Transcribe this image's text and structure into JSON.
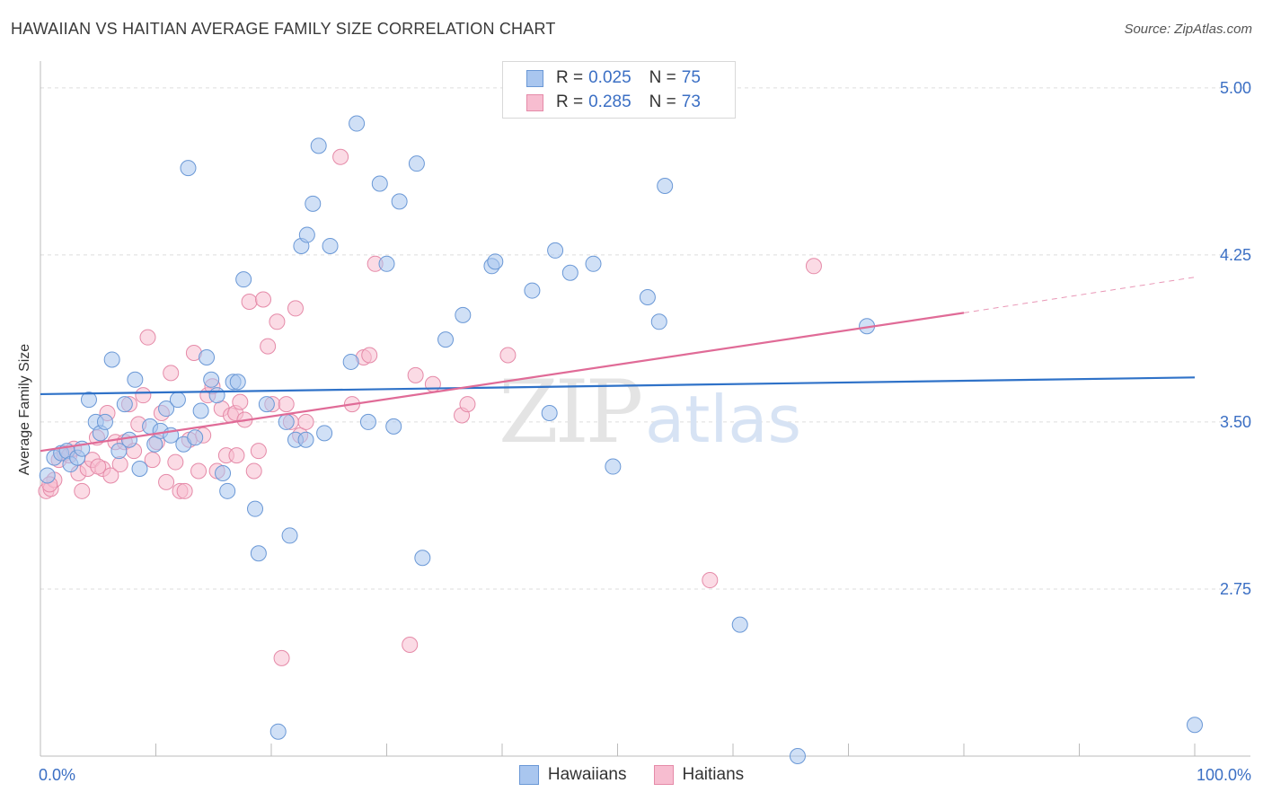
{
  "title": "HAWAIIAN VS HAITIAN AVERAGE FAMILY SIZE CORRELATION CHART",
  "source": "Source: ZipAtlas.com",
  "colors": {
    "hawaiians_fill": "#a9c6ef",
    "hawaiians_stroke": "#6a98d6",
    "hawaiians_line": "#2f72c8",
    "haitians_fill": "#f7bdd0",
    "haitians_stroke": "#e58aa8",
    "haitians_line": "#e06b97",
    "tick_label": "#3b6fc4",
    "grid": "#dddddd"
  },
  "legend": {
    "rows": [
      {
        "r_label": "R =",
        "r_value": "0.025",
        "n_label": "N =",
        "n_value": "75"
      },
      {
        "r_label": "R =",
        "r_value": "0.285",
        "n_label": "N =",
        "n_value": "73"
      }
    ]
  },
  "bottom_legend": [
    "Hawaiians",
    "Haitians"
  ],
  "chart_data": {
    "type": "scatter",
    "title": "HAWAIIAN VS HAITIAN AVERAGE FAMILY SIZE CORRELATION CHART",
    "ylabel": "Average Family Size",
    "xlabel": "",
    "xlim": [
      0,
      100
    ],
    "ylim": [
      2.0,
      5.08
    ],
    "x_tick_labels": [
      "0.0%",
      "100.0%"
    ],
    "y_ticks": [
      2.75,
      3.5,
      4.25,
      5.0
    ],
    "y_tick_labels": [
      "2.75",
      "3.50",
      "4.25",
      "5.00"
    ],
    "grid": "horizontal dashed",
    "watermark": "ZIPatlas",
    "series": [
      {
        "name": "Hawaiians",
        "r": 0.025,
        "n": 75,
        "trend": {
          "x0": 0,
          "y0": 3.625,
          "x1": 100,
          "y1": 3.7
        },
        "points": [
          [
            0.6,
            3.26
          ],
          [
            1.2,
            3.34
          ],
          [
            1.8,
            3.36
          ],
          [
            2.3,
            3.37
          ],
          [
            2.6,
            3.31
          ],
          [
            3.2,
            3.34
          ],
          [
            3.6,
            3.38
          ],
          [
            4.2,
            3.6
          ],
          [
            4.8,
            3.5
          ],
          [
            5.2,
            3.45
          ],
          [
            5.6,
            3.5
          ],
          [
            6.2,
            3.78
          ],
          [
            6.8,
            3.37
          ],
          [
            7.3,
            3.58
          ],
          [
            7.7,
            3.42
          ],
          [
            8.2,
            3.69
          ],
          [
            8.6,
            3.29
          ],
          [
            9.5,
            3.48
          ],
          [
            9.9,
            3.4
          ],
          [
            10.4,
            3.46
          ],
          [
            10.9,
            3.56
          ],
          [
            11.3,
            3.44
          ],
          [
            11.9,
            3.6
          ],
          [
            12.4,
            3.4
          ],
          [
            12.8,
            4.64
          ],
          [
            13.4,
            3.43
          ],
          [
            13.9,
            3.55
          ],
          [
            14.4,
            3.79
          ],
          [
            14.8,
            3.69
          ],
          [
            15.3,
            3.62
          ],
          [
            15.8,
            3.27
          ],
          [
            16.2,
            3.19
          ],
          [
            16.7,
            3.68
          ],
          [
            17.1,
            3.68
          ],
          [
            17.6,
            4.14
          ],
          [
            18.6,
            3.11
          ],
          [
            18.9,
            2.91
          ],
          [
            19.6,
            3.58
          ],
          [
            20.6,
            2.11
          ],
          [
            21.3,
            3.5
          ],
          [
            21.6,
            2.99
          ],
          [
            22.1,
            3.42
          ],
          [
            22.6,
            4.29
          ],
          [
            23.1,
            4.34
          ],
          [
            23.6,
            4.48
          ],
          [
            24.1,
            4.74
          ],
          [
            24.6,
            3.45
          ],
          [
            25.1,
            4.29
          ],
          [
            26.9,
            3.77
          ],
          [
            27.4,
            4.84
          ],
          [
            28.4,
            3.5
          ],
          [
            29.4,
            4.57
          ],
          [
            30.6,
            3.48
          ],
          [
            31.1,
            4.49
          ],
          [
            32.6,
            4.66
          ],
          [
            33.1,
            2.89
          ],
          [
            35.1,
            3.87
          ],
          [
            36.6,
            3.98
          ],
          [
            39.1,
            4.2
          ],
          [
            39.4,
            4.22
          ],
          [
            42.6,
            4.09
          ],
          [
            44.1,
            3.54
          ],
          [
            44.6,
            4.27
          ],
          [
            45.9,
            4.17
          ],
          [
            47.9,
            4.21
          ],
          [
            49.6,
            3.3
          ],
          [
            52.6,
            4.06
          ],
          [
            53.6,
            3.95
          ],
          [
            54.1,
            4.56
          ],
          [
            60.6,
            2.59
          ],
          [
            65.6,
            2.0
          ],
          [
            71.6,
            3.93
          ],
          [
            30.0,
            4.21
          ],
          [
            100.0,
            2.14
          ],
          [
            23.0,
            3.42
          ]
        ]
      },
      {
        "name": "Haitians",
        "r": 0.285,
        "n": 73,
        "trend": {
          "x0": 0,
          "y0": 3.37,
          "x1": 80,
          "y1": 3.99
        },
        "trend_dashed": {
          "x0": 80,
          "y0": 3.99,
          "x1": 100,
          "y1": 4.15
        },
        "points": [
          [
            0.5,
            3.19
          ],
          [
            0.9,
            3.2
          ],
          [
            1.2,
            3.24
          ],
          [
            1.6,
            3.33
          ],
          [
            2.1,
            3.36
          ],
          [
            2.5,
            3.35
          ],
          [
            2.9,
            3.38
          ],
          [
            3.3,
            3.27
          ],
          [
            3.6,
            3.19
          ],
          [
            4.1,
            3.29
          ],
          [
            4.5,
            3.33
          ],
          [
            4.9,
            3.43
          ],
          [
            5.4,
            3.29
          ],
          [
            5.8,
            3.54
          ],
          [
            6.1,
            3.26
          ],
          [
            6.5,
            3.41
          ],
          [
            6.9,
            3.31
          ],
          [
            7.3,
            3.41
          ],
          [
            7.7,
            3.58
          ],
          [
            8.1,
            3.37
          ],
          [
            8.5,
            3.49
          ],
          [
            8.9,
            3.62
          ],
          [
            9.3,
            3.88
          ],
          [
            9.7,
            3.33
          ],
          [
            10.1,
            3.41
          ],
          [
            10.5,
            3.54
          ],
          [
            10.9,
            3.23
          ],
          [
            11.3,
            3.72
          ],
          [
            11.7,
            3.32
          ],
          [
            12.1,
            3.19
          ],
          [
            12.5,
            3.19
          ],
          [
            12.9,
            3.42
          ],
          [
            13.3,
            3.81
          ],
          [
            13.7,
            3.28
          ],
          [
            14.1,
            3.44
          ],
          [
            14.5,
            3.62
          ],
          [
            14.9,
            3.66
          ],
          [
            15.3,
            3.28
          ],
          [
            15.7,
            3.56
          ],
          [
            16.1,
            3.35
          ],
          [
            16.5,
            3.53
          ],
          [
            16.9,
            3.54
          ],
          [
            17.3,
            3.59
          ],
          [
            17.7,
            3.51
          ],
          [
            18.1,
            4.04
          ],
          [
            18.5,
            3.28
          ],
          [
            18.9,
            3.37
          ],
          [
            19.3,
            4.05
          ],
          [
            19.7,
            3.84
          ],
          [
            20.1,
            3.58
          ],
          [
            20.5,
            3.95
          ],
          [
            20.9,
            2.44
          ],
          [
            21.3,
            3.58
          ],
          [
            21.7,
            3.5
          ],
          [
            22.1,
            4.01
          ],
          [
            22.5,
            3.44
          ],
          [
            23.0,
            3.5
          ],
          [
            26.0,
            4.69
          ],
          [
            27.0,
            3.58
          ],
          [
            28.0,
            3.79
          ],
          [
            28.5,
            3.8
          ],
          [
            29.0,
            4.21
          ],
          [
            32.0,
            2.5
          ],
          [
            32.5,
            3.71
          ],
          [
            34.0,
            3.67
          ],
          [
            36.5,
            3.53
          ],
          [
            37.0,
            3.58
          ],
          [
            40.5,
            3.8
          ],
          [
            58.0,
            2.79
          ],
          [
            67.0,
            4.2
          ],
          [
            0.8,
            3.22
          ],
          [
            5.0,
            3.3
          ],
          [
            17.0,
            3.35
          ]
        ]
      }
    ]
  }
}
